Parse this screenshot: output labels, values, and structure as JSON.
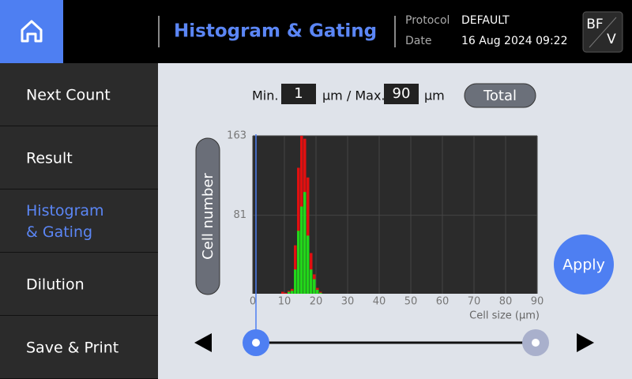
{
  "header": {
    "title": "Histogram & Gating",
    "protocol_label": "Protocol",
    "protocol": "DEFAULT",
    "date_label": "Date",
    "date": "16 Aug 2024 09:22",
    "mode_top": "BF",
    "mode_bottom": "V"
  },
  "sidebar": {
    "items": [
      {
        "lines": [
          "Next Count"
        ]
      },
      {
        "lines": [
          "Result"
        ]
      },
      {
        "lines": [
          "Histogram",
          "& Gating"
        ],
        "active": true
      },
      {
        "lines": [
          "Dilution"
        ]
      },
      {
        "lines": [
          "Save & Print"
        ]
      }
    ]
  },
  "controls": {
    "min_label": "Min.",
    "min": 1,
    "mid_label": "µm / Max.",
    "max": 90,
    "unit": "µm",
    "total": "Total",
    "apply": "Apply"
  },
  "chart_data": {
    "type": "histogram",
    "ylabel": "Cell number",
    "xlabel": "Cell size (µm)",
    "xlim": [
      0,
      90
    ],
    "xticks": [
      0,
      10,
      20,
      30,
      40,
      50,
      60,
      70,
      80,
      90
    ],
    "ylim": [
      0,
      163
    ],
    "yticks": [
      81,
      163
    ],
    "grid": true,
    "bins": [
      9,
      10,
      11,
      12,
      13,
      14,
      15,
      16,
      17,
      18,
      19,
      20,
      21,
      22
    ],
    "series": [
      {
        "color": "#e01010",
        "values": [
          2,
          1,
          3,
          5,
          50,
          130,
          163,
          160,
          120,
          42,
          20,
          6,
          2
        ]
      },
      {
        "color": "#22d61a",
        "values": [
          0,
          0,
          2,
          3,
          25,
          65,
          90,
          105,
          60,
          25,
          15,
          4,
          1
        ]
      }
    ]
  }
}
